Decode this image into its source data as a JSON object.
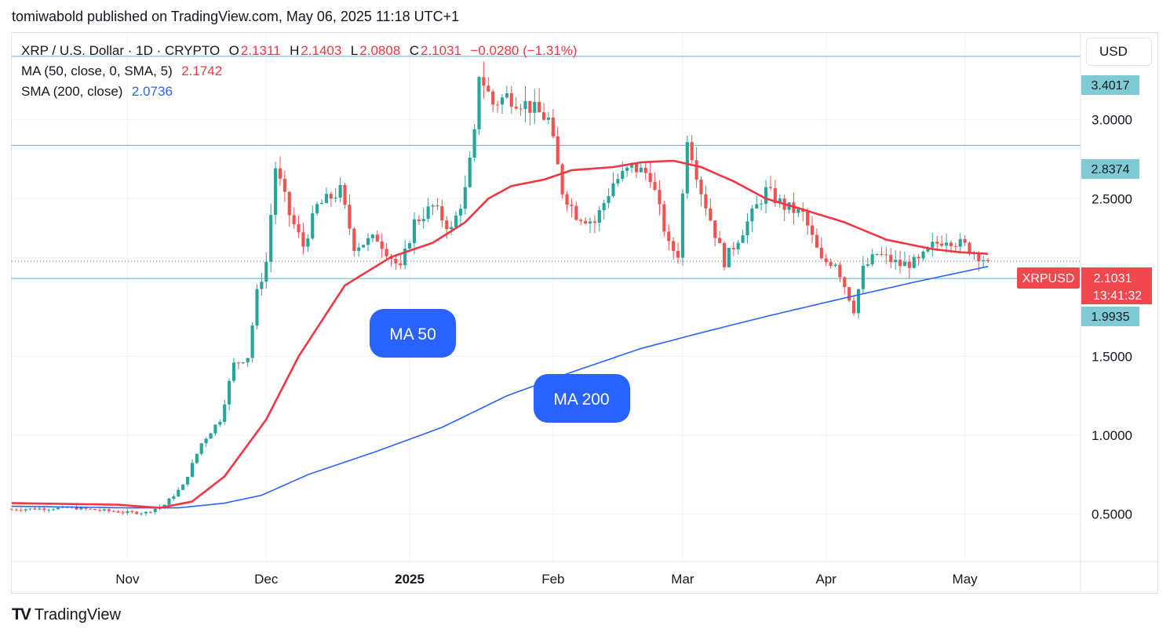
{
  "header": {
    "published_by": "tomiwabold published on TradingView.com, May 06, 2025 11:18 UTC+1"
  },
  "legend": {
    "symbol": "XRP / U.S. Dollar · 1D · CRYPTO",
    "open_label": "O",
    "open": "2.1311",
    "high_label": "H",
    "high": "2.1403",
    "low_label": "L",
    "low": "2.0808",
    "close_label": "C",
    "close": "2.1031",
    "change": "−0.0280 (−1.31%)",
    "ma_label": "MA (50, close, 0, SMA, 5)",
    "ma_value": "2.1742",
    "sma_label": "SMA (200, close)",
    "sma_value": "2.0736"
  },
  "currency_button": "USD",
  "price_badges": {
    "level_high": "3.4017",
    "level_mid": "2.8374",
    "level_low": "1.9935",
    "symbol_tag": "XRPUSD",
    "last_price": "2.1031",
    "countdown": "13:41:32"
  },
  "annotations": {
    "ma50": "MA 50",
    "ma200": "MA 200"
  },
  "footer": {
    "brand": "TradingView"
  },
  "colors": {
    "up": "#26a69a",
    "down": "#ef5350",
    "ma50": "#f23645",
    "sma200": "#2962ff",
    "hline": "#4fb9c5",
    "badge_cyan": "#7ecbd6",
    "badge_red": "#f0484f",
    "callout": "#2962ff"
  },
  "chart_data": {
    "type": "candlestick",
    "title": "XRP / U.S. Dollar · 1D · CRYPTO",
    "x_ticks": [
      "Nov",
      "Dec",
      "2025",
      "Feb",
      "Mar",
      "Apr",
      "May"
    ],
    "x_tick_dates": [
      "2024-11-01",
      "2024-12-01",
      "2025-01-01",
      "2025-02-01",
      "2025-03-01",
      "2025-04-01",
      "2025-05-01"
    ],
    "y_ticks": [
      "0.5000",
      "1.0000",
      "1.5000",
      "2.5000",
      "3.0000"
    ],
    "y_range": [
      0.2,
      3.55
    ],
    "x_range": [
      "2024-10-07",
      "2025-05-26"
    ],
    "grid": true,
    "horizontal_levels": [
      3.4017,
      2.8374,
      1.9935
    ],
    "last_price": 2.1031,
    "closes_anchors": [
      [
        "2024-10-07",
        0.53
      ],
      [
        "2024-10-20",
        0.54
      ],
      [
        "2024-11-01",
        0.51
      ],
      [
        "2024-11-05",
        0.51
      ],
      [
        "2024-11-09",
        0.56
      ],
      [
        "2024-11-13",
        0.68
      ],
      [
        "2024-11-17",
        0.95
      ],
      [
        "2024-11-21",
        1.1
      ],
      [
        "2024-11-24",
        1.45
      ],
      [
        "2024-11-27",
        1.5
      ],
      [
        "2024-11-29",
        1.9
      ],
      [
        "2024-12-01",
        2.1
      ],
      [
        "2024-12-03",
        2.7
      ],
      [
        "2024-12-06",
        2.4
      ],
      [
        "2024-12-09",
        2.2
      ],
      [
        "2024-12-12",
        2.45
      ],
      [
        "2024-12-17",
        2.55
      ],
      [
        "2024-12-20",
        2.2
      ],
      [
        "2024-12-25",
        2.25
      ],
      [
        "2024-12-30",
        2.05
      ],
      [
        "2025-01-02",
        2.35
      ],
      [
        "2025-01-06",
        2.45
      ],
      [
        "2025-01-10",
        2.3
      ],
      [
        "2025-01-13",
        2.55
      ],
      [
        "2025-01-15",
        2.9
      ],
      [
        "2025-01-16",
        3.3
      ],
      [
        "2025-01-19",
        3.1
      ],
      [
        "2025-01-22",
        3.15
      ],
      [
        "2025-01-26",
        3.1
      ],
      [
        "2025-01-31",
        3.0
      ],
      [
        "2025-02-03",
        2.55
      ],
      [
        "2025-02-06",
        2.4
      ],
      [
        "2025-02-10",
        2.35
      ],
      [
        "2025-02-14",
        2.6
      ],
      [
        "2025-02-18",
        2.7
      ],
      [
        "2025-02-22",
        2.65
      ],
      [
        "2025-02-26",
        2.2
      ],
      [
        "2025-02-28",
        2.15
      ],
      [
        "2025-03-02",
        2.9
      ],
      [
        "2025-03-05",
        2.55
      ],
      [
        "2025-03-10",
        2.1
      ],
      [
        "2025-03-14",
        2.3
      ],
      [
        "2025-03-19",
        2.55
      ],
      [
        "2025-03-23",
        2.45
      ],
      [
        "2025-03-27",
        2.4
      ],
      [
        "2025-03-31",
        2.1
      ],
      [
        "2025-04-03",
        2.1
      ],
      [
        "2025-04-07",
        1.8
      ],
      [
        "2025-04-09",
        2.05
      ],
      [
        "2025-04-12",
        2.15
      ],
      [
        "2025-04-17",
        2.08
      ],
      [
        "2025-04-21",
        2.1
      ],
      [
        "2025-04-24",
        2.2
      ],
      [
        "2025-04-27",
        2.25
      ],
      [
        "2025-05-01",
        2.2
      ],
      [
        "2025-05-06",
        2.1
      ]
    ],
    "ma50_anchors": [
      [
        "2024-10-07",
        0.57
      ],
      [
        "2024-10-30",
        0.56
      ],
      [
        "2024-11-08",
        0.54
      ],
      [
        "2024-11-15",
        0.58
      ],
      [
        "2024-11-22",
        0.74
      ],
      [
        "2024-12-01",
        1.1
      ],
      [
        "2024-12-08",
        1.5
      ],
      [
        "2024-12-18",
        1.95
      ],
      [
        "2024-12-28",
        2.13
      ],
      [
        "2025-01-06",
        2.22
      ],
      [
        "2025-01-13",
        2.35
      ],
      [
        "2025-01-18",
        2.5
      ],
      [
        "2025-01-23",
        2.58
      ],
      [
        "2025-01-30",
        2.62
      ],
      [
        "2025-02-05",
        2.68
      ],
      [
        "2025-02-14",
        2.7
      ],
      [
        "2025-02-20",
        2.73
      ],
      [
        "2025-02-27",
        2.74
      ],
      [
        "2025-03-05",
        2.7
      ],
      [
        "2025-03-12",
        2.61
      ],
      [
        "2025-03-19",
        2.5
      ],
      [
        "2025-03-26",
        2.44
      ],
      [
        "2025-04-05",
        2.35
      ],
      [
        "2025-04-14",
        2.24
      ],
      [
        "2025-04-24",
        2.18
      ],
      [
        "2025-04-30",
        2.16
      ],
      [
        "2025-05-06",
        2.15
      ]
    ],
    "sma200_anchors": [
      [
        "2024-10-07",
        0.55
      ],
      [
        "2024-11-01",
        0.54
      ],
      [
        "2024-11-12",
        0.54
      ],
      [
        "2024-11-22",
        0.57
      ],
      [
        "2024-11-30",
        0.62
      ],
      [
        "2024-12-10",
        0.75
      ],
      [
        "2024-12-25",
        0.9
      ],
      [
        "2025-01-08",
        1.05
      ],
      [
        "2025-01-22",
        1.25
      ],
      [
        "2025-02-05",
        1.4
      ],
      [
        "2025-02-20",
        1.55
      ],
      [
        "2025-03-05",
        1.65
      ],
      [
        "2025-03-20",
        1.76
      ],
      [
        "2025-04-05",
        1.87
      ],
      [
        "2025-04-20",
        1.97
      ],
      [
        "2025-05-06",
        2.07
      ]
    ]
  }
}
